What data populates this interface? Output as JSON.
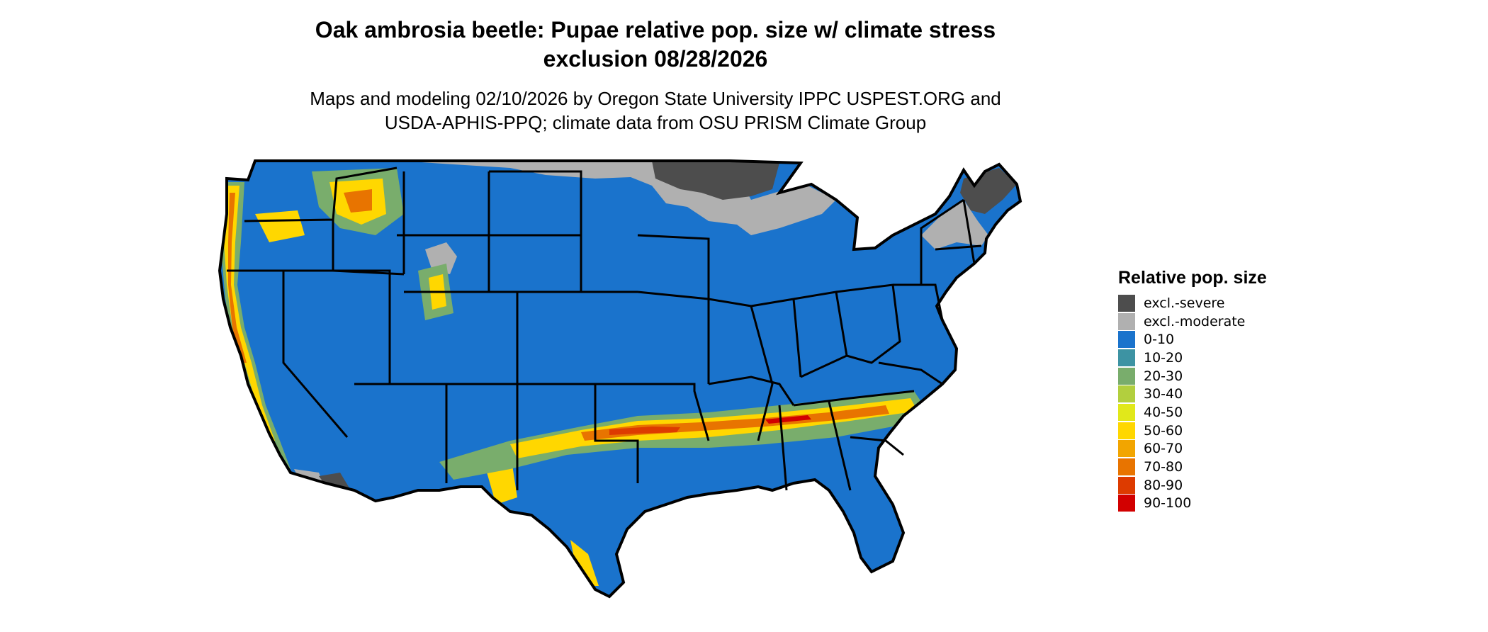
{
  "title": {
    "line1": "Oak ambrosia beetle: Pupae relative pop. size w/ climate stress",
    "line2": "exclusion 08/28/2026"
  },
  "subtitle": {
    "line1": "Maps and modeling 02/10/2026 by Oregon State University IPPC USPEST.ORG and",
    "line2": "USDA-APHIS-PPQ; climate data from OSU PRISM Climate Group"
  },
  "legend": {
    "title": "Relative pop. size",
    "items": [
      {
        "label": "excl.-severe",
        "color": "#4d4d4d"
      },
      {
        "label": "excl.-moderate",
        "color": "#b0b0b0"
      },
      {
        "label": "0-10",
        "color": "#1a73cc"
      },
      {
        "label": "10-20",
        "color": "#3d93a3"
      },
      {
        "label": "20-30",
        "color": "#79ad6c"
      },
      {
        "label": "30-40",
        "color": "#b2cf3e"
      },
      {
        "label": "40-50",
        "color": "#e1e81a"
      },
      {
        "label": "50-60",
        "color": "#ffd700"
      },
      {
        "label": "60-70",
        "color": "#f2a500"
      },
      {
        "label": "70-80",
        "color": "#e87400"
      },
      {
        "label": "80-90",
        "color": "#dd3b00"
      },
      {
        "label": "90-100",
        "color": "#d20000"
      }
    ]
  },
  "map": {
    "region": "contiguous United States"
  }
}
